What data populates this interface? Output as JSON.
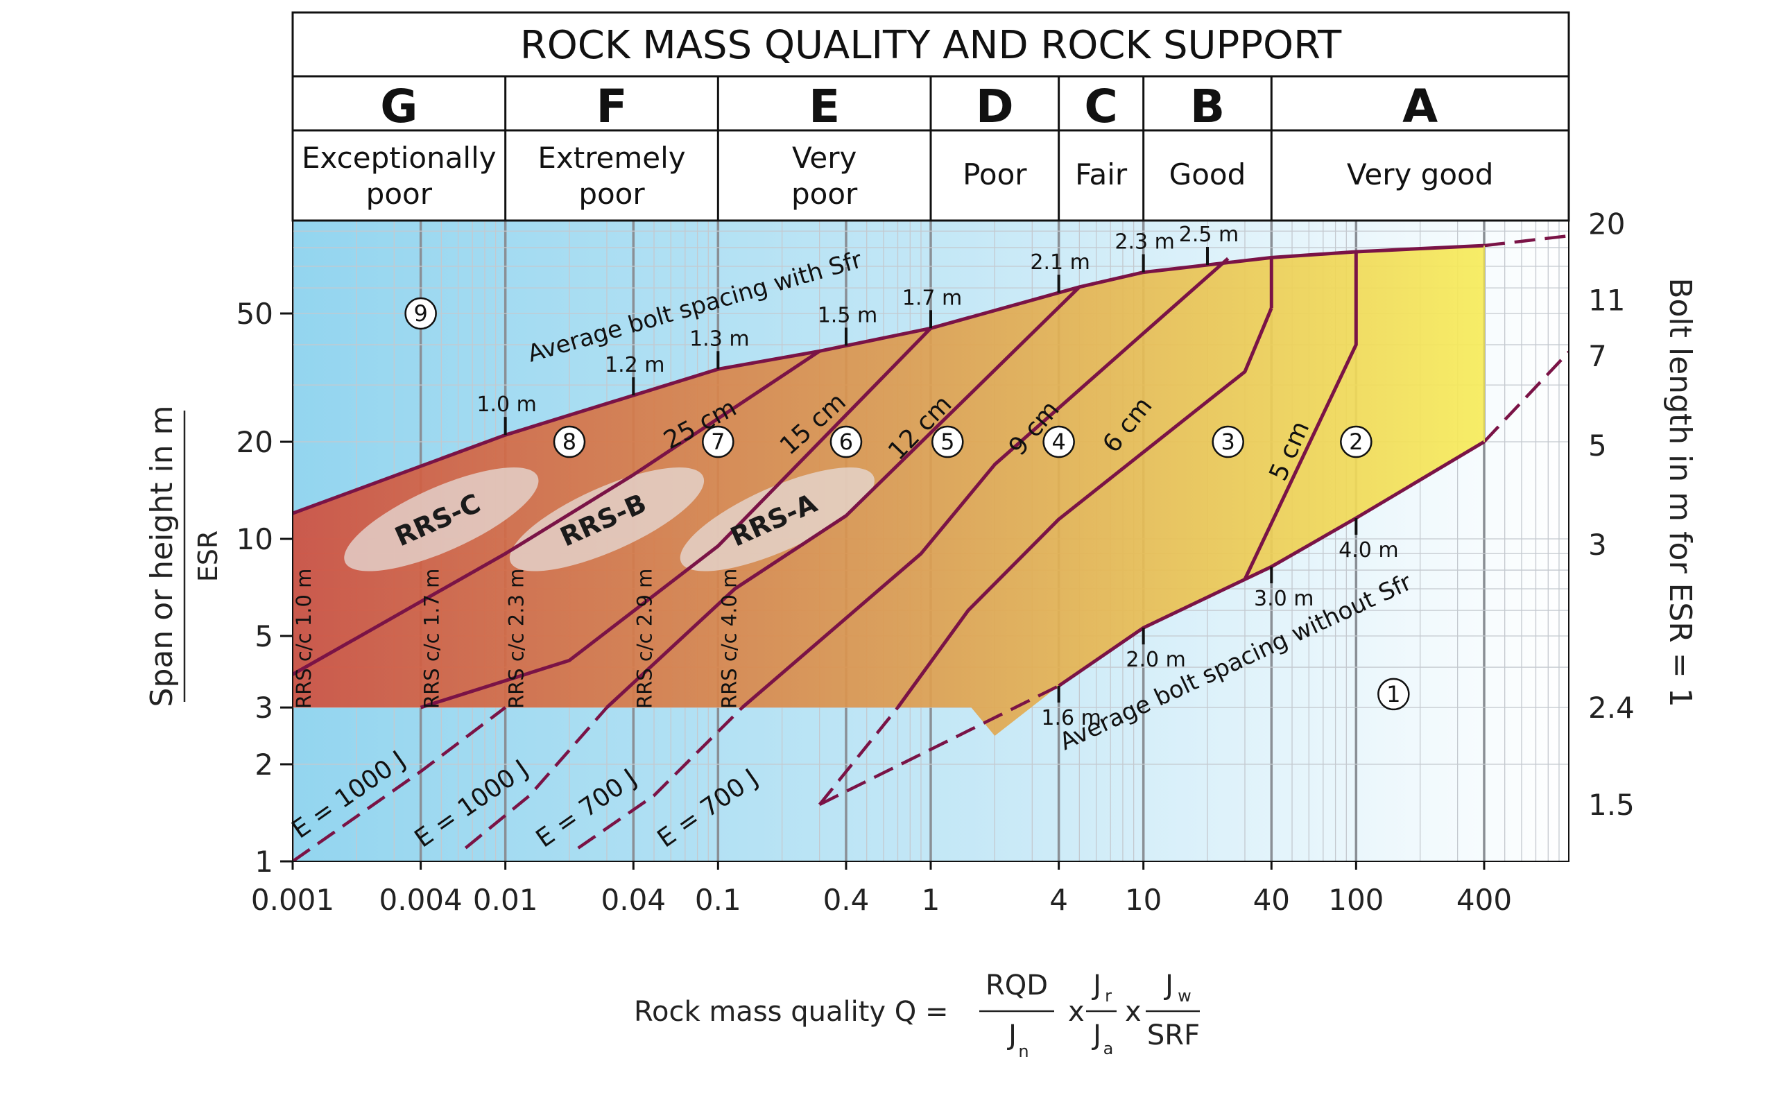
{
  "chart_data": {
    "type": "area",
    "title": "ROCK MASS QUALITY AND ROCK SUPPORT",
    "xscale": "log",
    "yscale": "log",
    "xlim": [
      0.001,
      1000
    ],
    "ylim": [
      1,
      100
    ],
    "grid": true,
    "classes": [
      {
        "letter": "G",
        "label": [
          "Exceptionally",
          "poor"
        ],
        "q": [
          0.001,
          0.01
        ]
      },
      {
        "letter": "F",
        "label": [
          "Extremely",
          "poor"
        ],
        "q": [
          0.01,
          0.1
        ]
      },
      {
        "letter": "E",
        "label": [
          "Very",
          "poor"
        ],
        "q": [
          0.1,
          1
        ]
      },
      {
        "letter": "D",
        "label": [
          "Poor"
        ],
        "q": [
          1,
          4
        ]
      },
      {
        "letter": "C",
        "label": [
          "Fair"
        ],
        "q": [
          4,
          10
        ]
      },
      {
        "letter": "B",
        "label": [
          "Good"
        ],
        "q": [
          10,
          40
        ]
      },
      {
        "letter": "A",
        "label": [
          "Very good"
        ],
        "q": [
          40,
          1000
        ]
      }
    ],
    "x_ticks": [
      {
        "v": 0.001,
        "t": "0.001"
      },
      {
        "v": 0.004,
        "t": "0.004"
      },
      {
        "v": 0.01,
        "t": "0.01"
      },
      {
        "v": 0.04,
        "t": "0.04"
      },
      {
        "v": 0.1,
        "t": "0.1"
      },
      {
        "v": 0.4,
        "t": "0.4"
      },
      {
        "v": 1,
        "t": "1"
      },
      {
        "v": 4,
        "t": "4"
      },
      {
        "v": 10,
        "t": "10"
      },
      {
        "v": 40,
        "t": "40"
      },
      {
        "v": 100,
        "t": "100"
      },
      {
        "v": 400,
        "t": "400"
      }
    ],
    "y_ticks": [
      {
        "v": 1,
        "t": "1"
      },
      {
        "v": 2,
        "t": "2"
      },
      {
        "v": 3,
        "t": "3"
      },
      {
        "v": 5,
        "t": "5"
      },
      {
        "v": 10,
        "t": "10"
      },
      {
        "v": 20,
        "t": "20"
      },
      {
        "v": 50,
        "t": "50"
      }
    ],
    "ylabel_top": "Span or height in m",
    "ylabel_bottom": "ESR",
    "right_ylabel": "Bolt length in m for ESR = 1",
    "right_ticks": [
      {
        "v": 1.5,
        "t": "1.5"
      },
      {
        "v": 3,
        "t": "2.4"
      },
      {
        "v": 9.6,
        "t": "3"
      },
      {
        "v": 19.5,
        "t": "5"
      },
      {
        "v": 37,
        "t": "7"
      },
      {
        "v": 55,
        "t": "11"
      },
      {
        "v": 95,
        "t": "20"
      }
    ],
    "xlabel": {
      "prefix": "Rock mass quality  Q =",
      "f1_num": "RQD",
      "f1_den": "J",
      "f1_den_sub": "n",
      "times": "x",
      "f2_num": "J",
      "f2_num_sub": "r",
      "f2_den": "J",
      "f2_den_sub": "a",
      "f3_num": "J",
      "f3_num_sub": "w",
      "f3_den": "SRF"
    },
    "boundaries": {
      "top_sfr": [
        [
          0.001,
          12.0
        ],
        [
          0.01,
          21.0
        ],
        [
          0.1,
          33.6
        ],
        [
          0.3,
          38.2
        ],
        [
          1,
          45.0
        ],
        [
          5,
          60.4
        ],
        [
          10,
          67.1
        ],
        [
          40,
          74.5
        ],
        [
          100,
          77.7
        ],
        [
          400,
          81.2
        ]
      ],
      "top_extension": [
        [
          400,
          81.2
        ],
        [
          1000,
          87.0
        ]
      ],
      "bottom_nosfr": [
        [
          4,
          3.5
        ],
        [
          10,
          5.3
        ],
        [
          40,
          8.2
        ],
        [
          100,
          11.6
        ],
        [
          400,
          20.0
        ]
      ],
      "bottom_extension": [
        [
          0.3,
          1.5
        ],
        [
          4,
          3.5
        ]
      ],
      "bottom_extension2": [
        [
          400,
          20.0
        ],
        [
          1000,
          38.0
        ]
      ],
      "shotcrete_floor_y": 3,
      "right_x": 400
    },
    "shotcrete_lines": [
      {
        "label": "25 cm",
        "pts": [
          [
            0.001,
            3.8
          ],
          [
            0.01,
            9.0
          ],
          [
            0.04,
            15.8
          ],
          [
            0.3,
            38.2
          ]
        ]
      },
      {
        "label": "15 cm",
        "pts": [
          [
            0.004,
            3.0
          ],
          [
            0.02,
            4.2
          ],
          [
            0.1,
            9.5
          ],
          [
            1,
            45.0
          ]
        ]
      },
      {
        "label": "12 cm",
        "pts": [
          [
            0.03,
            3.0
          ],
          [
            0.12,
            7.0
          ],
          [
            0.4,
            11.8
          ],
          [
            5,
            60.4
          ]
        ]
      },
      {
        "label": "9 cm",
        "pts": [
          [
            0.13,
            3.0
          ],
          [
            0.9,
            9.0
          ],
          [
            2.0,
            17.0
          ],
          [
            25,
            74.0
          ]
        ]
      },
      {
        "label": "6 cm",
        "pts": [
          [
            0.7,
            3.0
          ],
          [
            1.5,
            6.0
          ],
          [
            4.0,
            11.5
          ],
          [
            30,
            33.0
          ],
          [
            40,
            52.0
          ]
        ]
      },
      {
        "label": "5 cm",
        "pts": [
          [
            30,
            7.5
          ],
          [
            100,
            40.0
          ],
          [
            100,
            77.7
          ]
        ]
      },
      {
        "label": "",
        "pts": [
          [
            40,
            52.0
          ],
          [
            40,
            74.5
          ]
        ]
      }
    ],
    "energy_lines": [
      {
        "label": "E = 1000 J",
        "pts": [
          [
            0.001,
            1.0
          ],
          [
            0.004,
            1.9
          ],
          [
            0.01,
            3.0
          ]
        ]
      },
      {
        "label": "E = 1000 J",
        "pts": [
          [
            0.0065,
            1.1
          ],
          [
            0.013,
            1.6
          ],
          [
            0.03,
            3.0
          ]
        ]
      },
      {
        "label": "E = 700 J",
        "pts": [
          [
            0.022,
            1.1
          ],
          [
            0.05,
            1.6
          ],
          [
            0.13,
            3.0
          ]
        ]
      },
      {
        "label": "E = 700 J",
        "pts": [
          [
            0.3,
            1.5
          ],
          [
            0.7,
            3.0
          ]
        ]
      }
    ],
    "support_categories": [
      {
        "n": "1",
        "q": 150,
        "y": 3.3
      },
      {
        "n": "2",
        "q": 100,
        "y": 20
      },
      {
        "n": "3",
        "q": 25,
        "y": 20
      },
      {
        "n": "4",
        "q": 4,
        "y": 20
      },
      {
        "n": "5",
        "q": 1.2,
        "y": 20
      },
      {
        "n": "6",
        "q": 0.4,
        "y": 20
      },
      {
        "n": "7",
        "q": 0.1,
        "y": 20
      },
      {
        "n": "8",
        "q": 0.02,
        "y": 20
      },
      {
        "n": "9",
        "q": 0.004,
        "y": 50
      }
    ],
    "bolt_spacing_sfr": [
      {
        "label": "1.0 m",
        "q": 0.01
      },
      {
        "label": "1.2 m",
        "q": 0.04
      },
      {
        "label": "1.3 m",
        "q": 0.1
      },
      {
        "label": "1.5 m",
        "q": 0.4
      },
      {
        "label": "1.7 m",
        "q": 1
      },
      {
        "label": "2.1 m",
        "q": 4
      },
      {
        "label": "2.3 m",
        "q": 10
      },
      {
        "label": "2.5 m",
        "q": 20
      }
    ],
    "bolt_spacing_nosfr": [
      {
        "label": "1.6 m",
        "q": 4
      },
      {
        "label": "2.0 m",
        "q": 10
      },
      {
        "label": "3.0 m",
        "q": 40
      },
      {
        "label": "4.0 m",
        "q": 100
      }
    ],
    "curve_labels": {
      "with_sfr": "Average bolt spacing with Sfr",
      "without_sfr": "Average bolt spacing without Sfr"
    },
    "rrs_bands": [
      {
        "label": "RRS-C",
        "q": 0.005,
        "y": 11.5
      },
      {
        "label": "RRS-B",
        "q": 0.03,
        "y": 11.5
      },
      {
        "label": "RRS-A",
        "q": 0.19,
        "y": 11.5
      }
    ],
    "rrs_spacing": [
      {
        "label": "RRS  c/c 1.0 m",
        "q": 0.001
      },
      {
        "label": "RRS  c/c 1.7 m",
        "q": 0.004
      },
      {
        "label": "RRS  c/c 2.3 m",
        "q": 0.01
      },
      {
        "label": "RRS  c/c 2.9 m",
        "q": 0.04
      },
      {
        "label": "RRS  c/c 4.0 m",
        "q": 0.1
      }
    ],
    "colors": {
      "line": "#7a1346",
      "grid_major": "#8a8f95",
      "grid_minor": "#c4c9cf",
      "bg_left": "#93d5ef",
      "bg_right": "#ffffff",
      "fill_left": "#cf4f3f",
      "fill_mid": "#dc9a50",
      "fill_right": "#f7ec5a",
      "rrs_band": "#e6d8d4"
    }
  }
}
